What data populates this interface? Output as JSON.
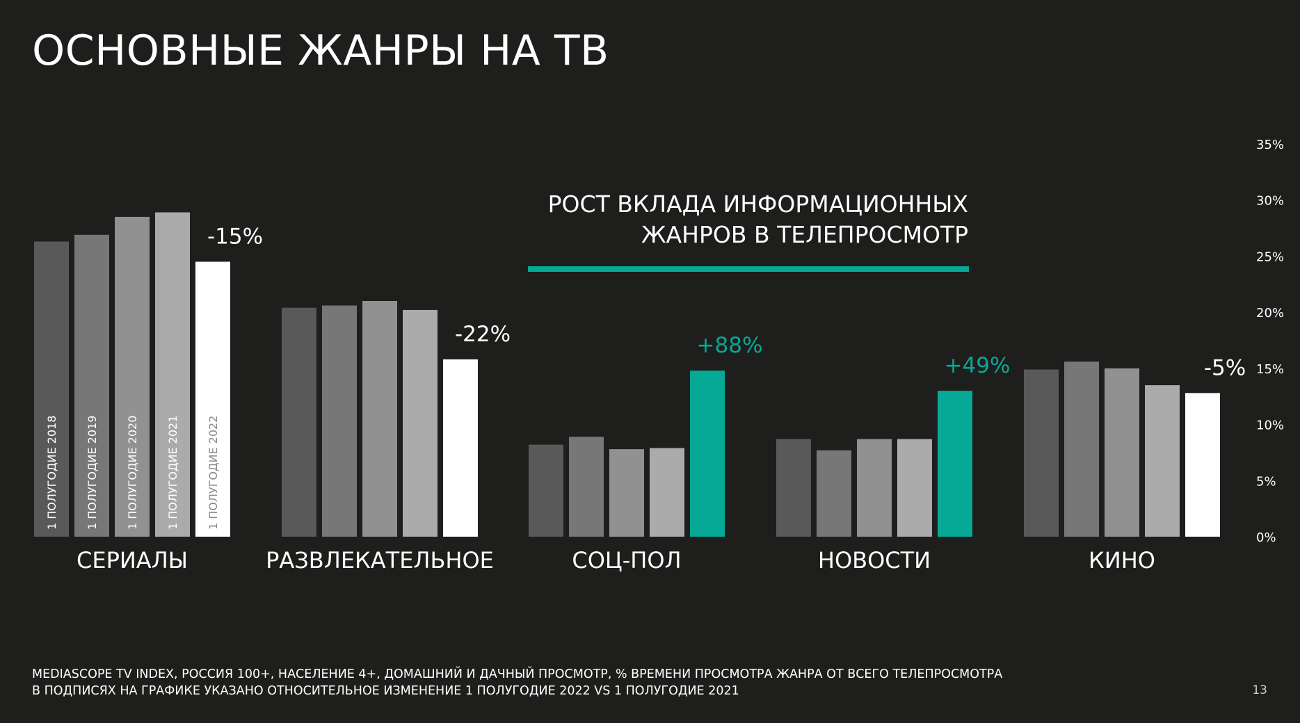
{
  "title": "ОСНОВНЫЕ ЖАНРЫ НА ТВ",
  "callout": {
    "line1": "РОСТ ВКЛАДА ИНФОРМАЦИОННЫХ",
    "line2": "ЖАНРОВ В ТЕЛЕПРОСМОТР"
  },
  "footnote": {
    "line1": "MEDIASCOPE TV INDEX, РОССИЯ 100+, НАСЕЛЕНИЕ 4+, ДОМАШНИЙ И ДАЧНЫЙ ПРОСМОТР, % ВРЕМЕНИ ПРОСМОТРА ЖАНРА ОТ ВСЕГО ТЕЛЕПРОСМОТРА",
    "line2": "В ПОДПИСЯХ НА ГРАФИКЕ УКАЗАНО ОТНОСИТЕЛЬНОЕ ИЗМЕНЕНИЕ 1 ПОЛУГОДИЕ 2022 VS 1 ПОЛУГОДИЕ 2021"
  },
  "page_number": "13",
  "colors": {
    "background": "#1e1e1c",
    "series": [
      "#595959",
      "#777777",
      "#919191",
      "#ababab",
      "#ffffff"
    ],
    "highlight": "#06a996"
  },
  "chart_data": {
    "type": "bar",
    "categories": [
      "СЕРИАЛЫ",
      "РАЗВЛЕКАТЕЛЬНОЕ",
      "СОЦ-ПОЛ",
      "НОВОСТИ",
      "КИНО"
    ],
    "series": [
      {
        "name": "1 ПОЛУГОДИЕ 2018",
        "values": [
          26.3,
          20.4,
          8.2,
          8.7,
          14.9
        ]
      },
      {
        "name": "1 ПОЛУГОДИЕ 2019",
        "values": [
          26.9,
          20.6,
          8.9,
          7.7,
          15.6
        ]
      },
      {
        "name": "1 ПОЛУГОДИЕ 2020",
        "values": [
          28.5,
          21.0,
          7.8,
          8.7,
          15.0
        ]
      },
      {
        "name": "1 ПОЛУГОДИЕ 2021",
        "values": [
          28.9,
          20.2,
          7.9,
          8.7,
          13.5
        ]
      },
      {
        "name": "1 ПОЛУГОДИЕ 2022",
        "values": [
          24.5,
          15.8,
          14.8,
          13.0,
          12.8
        ]
      }
    ],
    "change_labels": [
      "-15%",
      "-22%",
      "+88%",
      "+49%",
      "-5%"
    ],
    "highlighted_categories": [
      2,
      3
    ],
    "ylim": [
      0,
      35
    ],
    "yticks": [
      "0%",
      "5%",
      "10%",
      "15%",
      "20%",
      "25%",
      "30%",
      "35%"
    ],
    "legend": "series names written vertically inside the first group's bars",
    "grid": false
  }
}
